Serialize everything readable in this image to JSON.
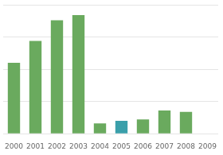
{
  "chart_data": {
    "type": "bar",
    "categories": [
      "2000",
      "2001",
      "2002",
      "2003",
      "2004",
      "2005",
      "2006",
      "2007",
      "2008",
      "2009"
    ],
    "values": [
      55,
      72,
      88,
      92,
      8,
      10,
      11,
      18,
      17,
      0
    ],
    "colors": [
      "#6aaa5e",
      "#6aaa5e",
      "#6aaa5e",
      "#6aaa5e",
      "#6aaa5e",
      "#3a9faa",
      "#6aaa5e",
      "#6aaa5e",
      "#6aaa5e",
      "#6aaa5e"
    ],
    "ylim": [
      0,
      100
    ],
    "yticks": [
      0,
      25,
      50,
      75,
      100
    ],
    "grid": true,
    "tick_labels": "x"
  }
}
